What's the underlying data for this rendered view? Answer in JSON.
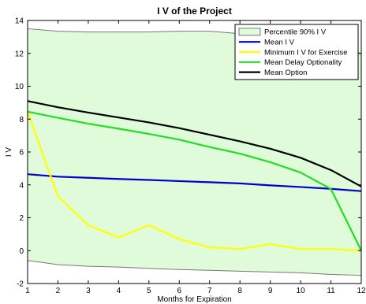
{
  "chart_data": {
    "type": "line",
    "title": "I V of the Project",
    "xlabel": "Months for Expiration",
    "ylabel": "I V",
    "xlim": [
      1,
      12
    ],
    "ylim": [
      -2,
      14
    ],
    "xticks": [
      1,
      2,
      3,
      4,
      5,
      6,
      7,
      8,
      9,
      10,
      11,
      12
    ],
    "yticks": [
      -2,
      0,
      2,
      4,
      6,
      8,
      10,
      12,
      14
    ],
    "grid": false,
    "legend_position": "top-right",
    "x": [
      1,
      2,
      3,
      4,
      5,
      6,
      7,
      8,
      9,
      10,
      11,
      12
    ],
    "band": {
      "name": "Percentile 90%   I V",
      "color": "#e0fbd9",
      "edge_color": "#777777",
      "upper": [
        13.5,
        13.35,
        13.3,
        13.3,
        13.3,
        13.35,
        13.35,
        13.2,
        13.0,
        12.75,
        12.4,
        12.0
      ],
      "lower": [
        -0.6,
        -0.85,
        -0.95,
        -1.0,
        -1.08,
        -1.15,
        -1.2,
        -1.25,
        -1.3,
        -1.35,
        -1.45,
        -1.5
      ]
    },
    "series": [
      {
        "name": "Mean   I V",
        "color": "#0000cc",
        "values": [
          4.65,
          4.5,
          4.43,
          4.36,
          4.3,
          4.23,
          4.16,
          4.09,
          3.97,
          3.87,
          3.76,
          3.62
        ]
      },
      {
        "name": "Minimum   I V for Exercise",
        "color": "#ffff00",
        "values": [
          8.45,
          3.3,
          1.55,
          0.8,
          1.55,
          0.7,
          0.2,
          0.1,
          0.4,
          0.1,
          0.1,
          0.0
        ]
      },
      {
        "name": "Mean Delay Optionality",
        "color": "#22dd22",
        "values": [
          8.45,
          8.08,
          7.72,
          7.42,
          7.1,
          6.75,
          6.3,
          5.9,
          5.38,
          4.75,
          3.75,
          0.0
        ]
      },
      {
        "name": "Mean Option",
        "color": "#000000",
        "values": [
          9.1,
          8.72,
          8.4,
          8.1,
          7.8,
          7.45,
          7.05,
          6.65,
          6.2,
          5.65,
          4.9,
          3.9
        ]
      }
    ]
  }
}
